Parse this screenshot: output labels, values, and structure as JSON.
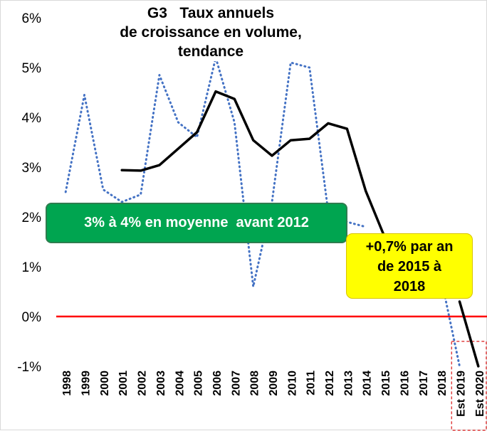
{
  "chart_data": {
    "type": "line",
    "title_lines": [
      "G3   Taux annuels",
      "de croissance en volume,",
      "tendance"
    ],
    "categories": [
      "1998",
      "1999",
      "2000",
      "2001",
      "2002",
      "2003",
      "2004",
      "2005",
      "2006",
      "2007",
      "2008",
      "2009",
      "2010",
      "2011",
      "2012",
      "2013",
      "2014",
      "2015",
      "2016",
      "2017",
      "2018",
      "Est 2019",
      "Est 2020"
    ],
    "ylim": [
      -1,
      6
    ],
    "yticks": [
      "-1%",
      "0%",
      "1%",
      "2%",
      "3%",
      "4%",
      "5%",
      "6%"
    ],
    "series": [
      {
        "style": "dotted",
        "color": "#4472c4",
        "values": [
          2.5,
          4.45,
          2.55,
          2.3,
          2.45,
          4.85,
          3.9,
          3.6,
          5.2,
          3.9,
          0.6,
          2.3,
          5.1,
          5.0,
          2.1,
          1.9,
          1.8,
          null,
          null,
          null,
          0.8,
          -1.0,
          null
        ]
      },
      {
        "style": "solid",
        "color": "#000000",
        "values": [
          null,
          null,
          null,
          2.94,
          2.93,
          3.04,
          3.37,
          3.7,
          4.52,
          4.37,
          3.54,
          3.23,
          3.54,
          3.57,
          3.88,
          3.77,
          2.52,
          1.6,
          null,
          null,
          null,
          0.3,
          -1.0
        ]
      }
    ],
    "reference_line": {
      "value": 0,
      "color": "#ff0000"
    },
    "annotations": {
      "green": "3% à 4% en moyenne  avant 2012",
      "yellow_lines": [
        "+0,7% par an",
        "de 2015 à",
        "2018"
      ]
    },
    "highlight_box_color": "#e04040",
    "grid": false,
    "legend": "none"
  }
}
